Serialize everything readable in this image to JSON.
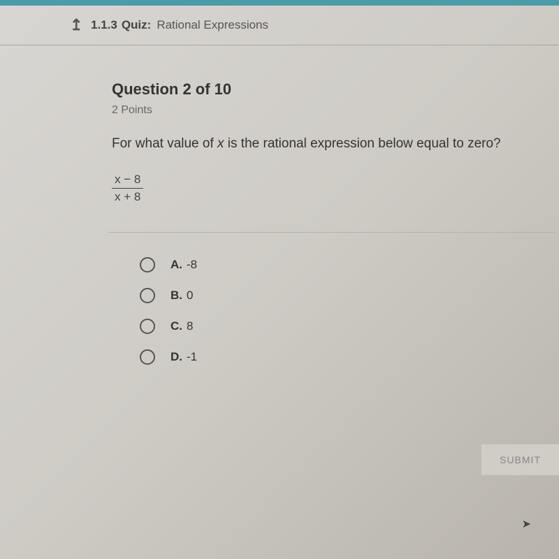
{
  "header": {
    "quiz_number": "1.1.3",
    "quiz_label": "Quiz:",
    "quiz_title": "Rational Expressions"
  },
  "question": {
    "header": "Question 2 of 10",
    "points": "2 Points",
    "prompt_pre": "For what value of ",
    "prompt_var": "x",
    "prompt_post": " is the rational expression below equal to zero?",
    "fraction_num": "x − 8",
    "fraction_den": "x + 8"
  },
  "options": [
    {
      "letter": "A.",
      "text": "-8"
    },
    {
      "letter": "B.",
      "text": "0"
    },
    {
      "letter": "C.",
      "text": "8"
    },
    {
      "letter": "D.",
      "text": "-1"
    }
  ],
  "submit_label": "SUBMIT"
}
